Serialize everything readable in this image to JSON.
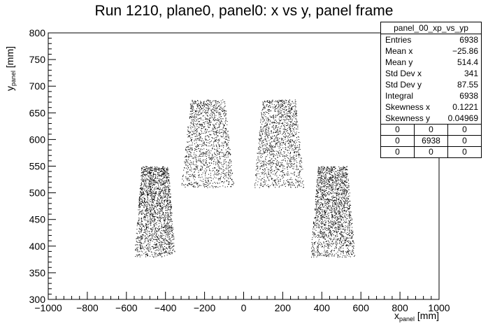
{
  "chart_data": {
    "type": "scatter",
    "title": "Run 1210, plane0, panel0: x vs y, panel frame",
    "xlabel": {
      "main": "x",
      "sub": "panel",
      "unit": " [mm]"
    },
    "ylabel": {
      "main": "y",
      "sub": "panel",
      "unit": " [mm]"
    },
    "xlim": [
      -1000,
      1000
    ],
    "ylim": [
      300,
      800
    ],
    "xticks": [
      -1000,
      -800,
      -600,
      -400,
      -200,
      0,
      200,
      400,
      600,
      800,
      1000
    ],
    "xtick_labels": [
      "−1000",
      "−800",
      "−600",
      "−400",
      "−200",
      "0",
      "200",
      "400",
      "600",
      "800",
      "1000"
    ],
    "yticks": [
      300,
      350,
      400,
      450,
      500,
      550,
      600,
      650,
      700,
      750,
      800
    ],
    "ytick_labels": [
      "300",
      "350",
      "400",
      "450",
      "500",
      "550",
      "600",
      "650",
      "700",
      "750",
      "800"
    ],
    "grid": false,
    "marker_color": "#000000",
    "clusters": [
      {
        "x_range": [
          -560,
          -350
        ],
        "y_range": [
          380,
          550
        ],
        "density": "high"
      },
      {
        "x_range": [
          -320,
          -50
        ],
        "y_range": [
          510,
          675
        ],
        "density": "medium"
      },
      {
        "x_range": [
          50,
          310
        ],
        "y_range": [
          510,
          675
        ],
        "density": "medium"
      },
      {
        "x_range": [
          340,
          570
        ],
        "y_range": [
          380,
          550
        ],
        "density": "high"
      }
    ],
    "stats_box": {
      "name": "panel_00_xp_vs_yp",
      "rows": [
        {
          "label": "Entries",
          "value": "6938"
        },
        {
          "label": "Mean x",
          "value": "−25.86"
        },
        {
          "label": "Mean y",
          "value": "514.4"
        },
        {
          "label": "Std Dev x",
          "value": "341"
        },
        {
          "label": "Std Dev y",
          "value": "87.55"
        },
        {
          "label": "Integral",
          "value": "6938"
        },
        {
          "label": "Skewness x",
          "value": "0.1221"
        },
        {
          "label": "Skewness y",
          "value": "0.04969"
        }
      ],
      "overflow_grid": [
        [
          "0",
          "0",
          "0"
        ],
        [
          "0",
          "6938",
          "0"
        ],
        [
          "0",
          "0",
          "0"
        ]
      ]
    }
  }
}
